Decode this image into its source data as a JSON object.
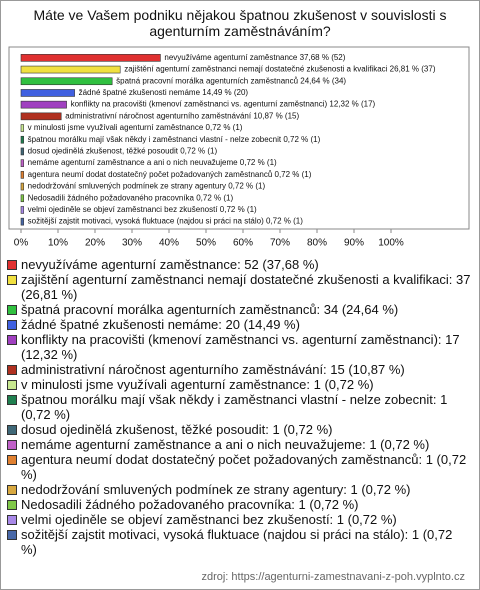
{
  "chart_data": {
    "type": "bar",
    "orientation": "horizontal",
    "title": "Máte ve Vašem podniku nějakou špatnou zkušenost v souvislosti s agenturním zaměstnáváním?",
    "categories": [
      "nevyužíváme agenturní zaměstnance",
      "zajištění agenturní zaměstnanci nemají dostatečné zkušenosti a kvalifikaci",
      "špatná pracovní morálka agenturních zaměstnanců",
      "žádné špatné zkušenosti nemáme",
      "konflikty na pracovišti (kmenoví zaměstnanci vs. agenturní zaměstnanci)",
      "administrativní náročnost agenturního zaměstnávání",
      "v minulosti jsme využívali agenturní zaměstnance",
      "špatnou morálku mají však někdy i zaměstnanci vlastní - nelze zobecnit",
      "dosud ojedinělá zkušenost, těžké posoudit",
      "nemáme agenturní zaměstnance a ani o nich neuvažujeme",
      "agentura neumí dodat dostatečný počet požadovaných zaměstnanců",
      "nedodržování smluvených podmínek ze strany agentury",
      "Nedosadili žádného požadovaného pracovníka",
      "velmi ojediněle se objeví zaměstnanci bez zkušeností",
      "sožitější zajstit motivaci, vysoká fluktuace (najdou si práci na stálo)"
    ],
    "values": [
      37.68,
      26.81,
      24.64,
      14.49,
      12.32,
      10.87,
      0.72,
      0.72,
      0.72,
      0.72,
      0.72,
      0.72,
      0.72,
      0.72,
      0.72
    ],
    "value_labels": [
      "37,68 % (52)",
      "26,81 % (37)",
      "24,64 % (34)",
      "14,49 % (20)",
      "12,32 % (17)",
      "10,87 % (15)",
      "0,72 % (1)",
      "0,72 % (1)",
      "0,72 % (1)",
      "0,72 % (1)",
      "0,72 % (1)",
      "0,72 % (1)",
      "0,72 % (1)",
      "0,72 % (1)",
      "0,72 % (1)"
    ],
    "colors": [
      "#e03030",
      "#f0e040",
      "#30c040",
      "#4060e0",
      "#a040c0",
      "#b03020",
      "#c8e890",
      "#208050",
      "#406878",
      "#c060c8",
      "#e08030",
      "#d8a840",
      "#80c848",
      "#a888e8",
      "#4868a8"
    ],
    "legend_labels": [
      "nevyužíváme agenturní zaměstnance: 52 (37,68 %)",
      "zajištění agenturní zaměstnanci nemají dostatečné zkušenosti a kvalifikaci: 37 (26,81 %)",
      "špatná pracovní morálka agenturních zaměstnanců: 34 (24,64 %)",
      "žádné špatné zkušenosti nemáme: 20 (14,49 %)",
      "konflikty na pracovišti (kmenoví zaměstnanci vs. agenturní zaměstnanci): 17 (12,32 %)",
      "administrativní náročnost agenturního zaměstnávání: 15 (10,87 %)",
      "v minulosti jsme využívali agenturní zaměstnance: 1 (0,72 %)",
      "špatnou morálku mají však někdy i zaměstnanci vlastní - nelze zobecnit: 1 (0,72 %)",
      "dosud ojedinělá zkušenost, těžké posoudit: 1 (0,72 %)",
      "nemáme agenturní zaměstnance a ani o nich neuvažujeme: 1 (0,72 %)",
      "agentura neumí dodat dostatečný počet požadovaných zaměstnanců: 1 (0,72 %)",
      "nedodržování smluvených podmínek ze strany agentury: 1 (0,72 %)",
      "Nedosadili žádného požadovaného pracovníka: 1 (0,72 %)",
      "velmi ojediněle se objeví zaměstnanci bez zkušeností: 1 (0,72 %)",
      "sožitější zajstit motivaci, vysoká fluktuace (najdou si práci na stálo): 1 (0,72 %)"
    ],
    "xlim": [
      0,
      100
    ],
    "xticks": [
      {
        "value": 0,
        "label": "0%"
      },
      {
        "value": 10,
        "label": "10%"
      },
      {
        "value": 20,
        "label": "20%"
      },
      {
        "value": 30,
        "label": "30%"
      },
      {
        "value": 40,
        "label": "40%"
      },
      {
        "value": 50,
        "label": "50%"
      },
      {
        "value": 60,
        "label": "60%"
      },
      {
        "value": 70,
        "label": "70%"
      },
      {
        "value": 80,
        "label": "80%"
      },
      {
        "value": 90,
        "label": "90%"
      },
      {
        "value": 100,
        "label": "100%"
      }
    ],
    "source": "zdroj: https://agenturni-zamestnavani-z-poh.vyplnto.cz"
  }
}
